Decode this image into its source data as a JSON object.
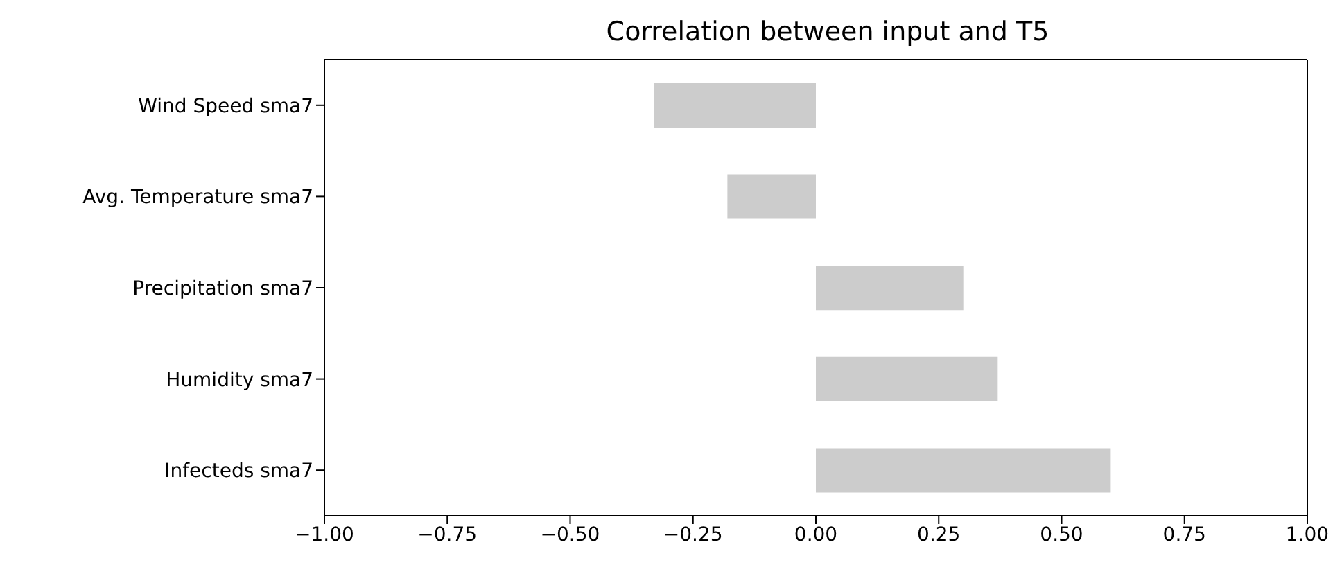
{
  "chart_data": {
    "type": "bar",
    "orientation": "horizontal",
    "title": "Correlation between input and T5",
    "categories": [
      "Wind Speed sma7",
      "Avg. Temperature sma7",
      "Precipitation sma7",
      "Humidity sma7",
      "Infecteds sma7"
    ],
    "values": [
      -0.33,
      -0.18,
      0.3,
      0.37,
      0.6
    ],
    "color": "#cccccc",
    "xlim": [
      -1,
      1
    ],
    "xticks": [
      {
        "value": -1,
        "label": "−1.00"
      },
      {
        "value": -0.75,
        "label": "−0.75"
      },
      {
        "value": -0.5,
        "label": "−0.50"
      },
      {
        "value": -0.25,
        "label": "−0.25"
      },
      {
        "value": 0,
        "label": "0.00"
      },
      {
        "value": 0.25,
        "label": "0.25"
      },
      {
        "value": 0.5,
        "label": "0.50"
      },
      {
        "value": 0.75,
        "label": "0.75"
      },
      {
        "value": 1,
        "label": "1.00"
      }
    ],
    "grid": false,
    "legend": false
  }
}
